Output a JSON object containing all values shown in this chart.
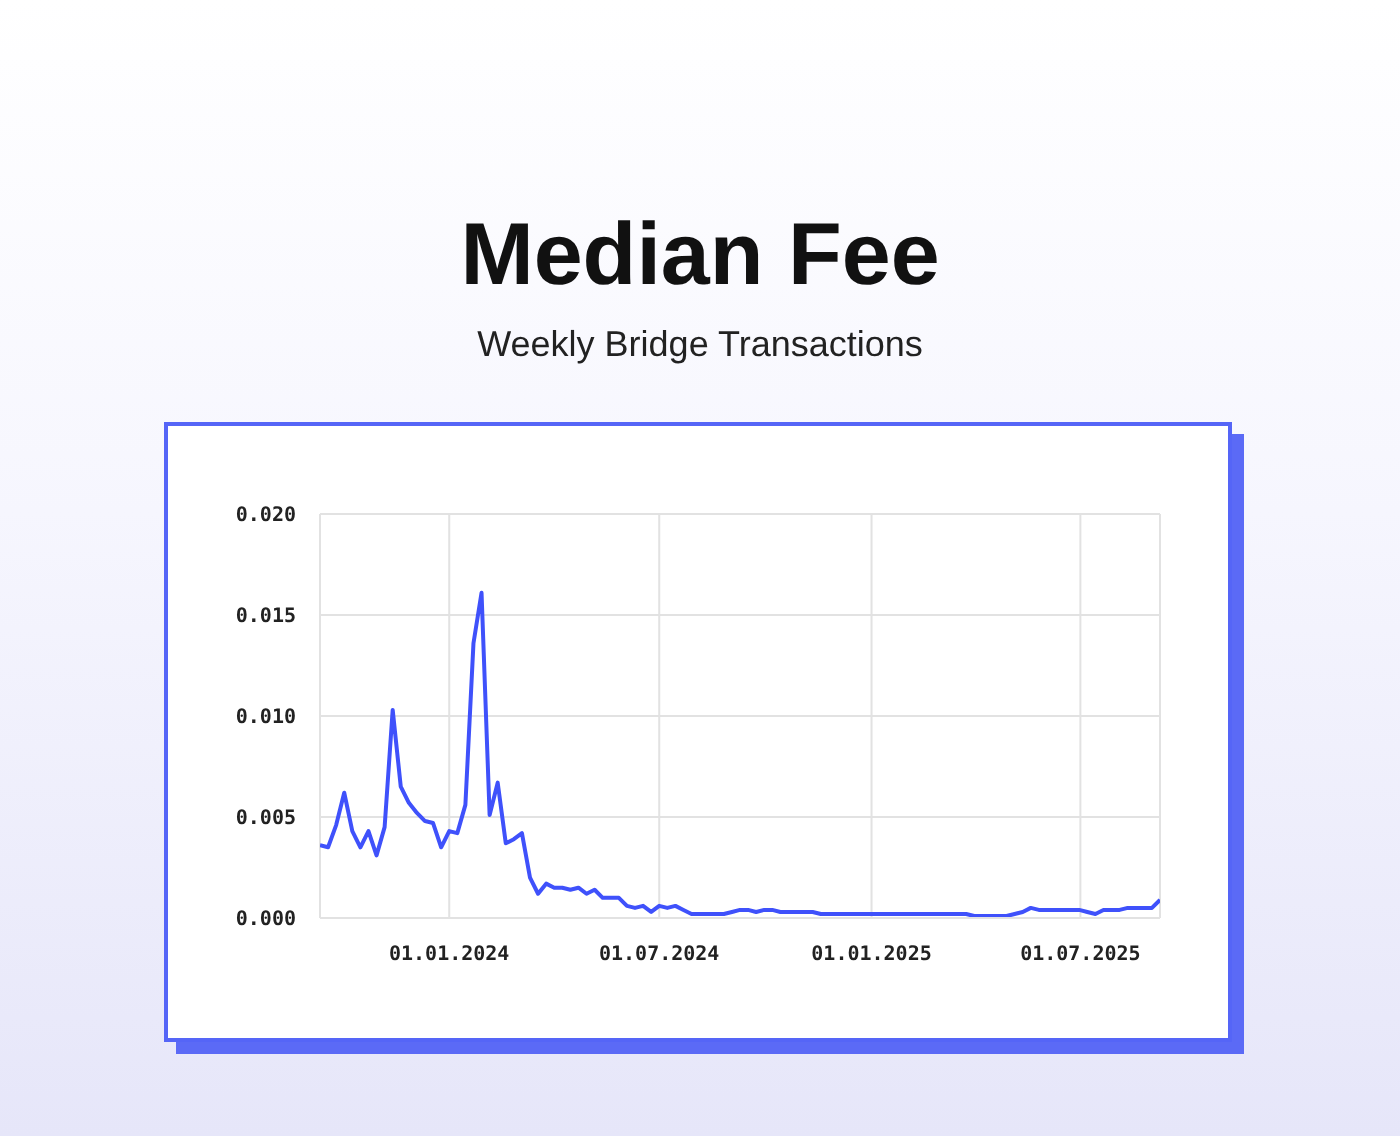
{
  "chart_data": {
    "type": "line",
    "title": "Median Fee",
    "subtitle": "Weekly Bridge Transactions",
    "x": [
      "2023-09-11",
      "2023-09-18",
      "2023-09-25",
      "2023-10-02",
      "2023-10-09",
      "2023-10-16",
      "2023-10-23",
      "2023-10-30",
      "2023-11-06",
      "2023-11-13",
      "2023-11-20",
      "2023-11-27",
      "2023-12-04",
      "2023-12-11",
      "2023-12-18",
      "2023-12-25",
      "2024-01-01",
      "2024-01-08",
      "2024-01-15",
      "2024-01-22",
      "2024-01-29",
      "2024-02-05",
      "2024-02-12",
      "2024-02-19",
      "2024-02-26",
      "2024-03-04",
      "2024-03-11",
      "2024-03-18",
      "2024-03-25",
      "2024-04-01",
      "2024-04-08",
      "2024-04-15",
      "2024-04-22",
      "2024-04-29",
      "2024-05-06",
      "2024-05-13",
      "2024-05-20",
      "2024-05-27",
      "2024-06-03",
      "2024-06-10",
      "2024-06-17",
      "2024-06-24",
      "2024-07-01",
      "2024-07-08",
      "2024-07-15",
      "2024-07-22",
      "2024-07-29",
      "2024-08-05",
      "2024-08-12",
      "2024-08-19",
      "2024-08-26",
      "2024-09-02",
      "2024-09-09",
      "2024-09-16",
      "2024-09-23",
      "2024-09-30",
      "2024-10-07",
      "2024-10-14",
      "2024-10-21",
      "2024-10-28",
      "2024-11-04",
      "2024-11-11",
      "2024-11-18",
      "2024-11-25",
      "2024-12-02",
      "2024-12-09",
      "2024-12-16",
      "2024-12-23",
      "2024-12-30",
      "2025-01-06",
      "2025-01-13",
      "2025-01-20",
      "2025-01-27",
      "2025-02-03",
      "2025-02-10",
      "2025-02-17",
      "2025-02-24",
      "2025-03-03",
      "2025-03-10",
      "2025-03-17",
      "2025-03-24",
      "2025-03-31",
      "2025-04-07",
      "2025-04-14",
      "2025-04-21",
      "2025-04-28",
      "2025-05-05",
      "2025-05-12",
      "2025-05-19",
      "2025-05-26",
      "2025-06-02",
      "2025-06-09",
      "2025-06-16",
      "2025-06-23",
      "2025-06-30",
      "2025-07-07",
      "2025-07-14",
      "2025-07-21",
      "2025-07-28",
      "2025-08-04",
      "2025-08-11",
      "2025-08-18",
      "2025-08-25",
      "2025-09-01",
      "2025-09-08"
    ],
    "values": [
      0.0036,
      0.0035,
      0.0046,
      0.0062,
      0.0043,
      0.0035,
      0.0043,
      0.0031,
      0.0045,
      0.0103,
      0.0065,
      0.0057,
      0.0052,
      0.0048,
      0.0047,
      0.0035,
      0.0043,
      0.0042,
      0.0056,
      0.0136,
      0.0161,
      0.0051,
      0.0067,
      0.0037,
      0.0039,
      0.0042,
      0.002,
      0.0012,
      0.0017,
      0.0015,
      0.0015,
      0.0014,
      0.0015,
      0.0012,
      0.0014,
      0.001,
      0.001,
      0.001,
      0.0006,
      0.0005,
      0.0006,
      0.0003,
      0.0006,
      0.0005,
      0.0006,
      0.0004,
      0.0002,
      0.0002,
      0.0002,
      0.0002,
      0.0002,
      0.0003,
      0.0004,
      0.0004,
      0.0003,
      0.0004,
      0.0004,
      0.0003,
      0.0003,
      0.0003,
      0.0003,
      0.0003,
      0.0002,
      0.0002,
      0.0002,
      0.0002,
      0.0002,
      0.0002,
      0.0002,
      0.0002,
      0.0002,
      0.0002,
      0.0002,
      0.0002,
      0.0002,
      0.0002,
      0.0002,
      0.0002,
      0.0002,
      0.0002,
      0.0002,
      0.0001,
      0.0001,
      0.0001,
      0.0001,
      0.0001,
      0.0002,
      0.0003,
      0.0005,
      0.0004,
      0.0004,
      0.0004,
      0.0004,
      0.0004,
      0.0004,
      0.0003,
      0.0002,
      0.0004,
      0.0004,
      0.0004,
      0.0005,
      0.0005,
      0.0005,
      0.0005,
      0.0009
    ],
    "color": "#3f51fb",
    "xlim": [
      "2023-09-11",
      "2025-09-08"
    ],
    "xticks": [
      {
        "value": "2024-01-01",
        "label": "01.01.2024"
      },
      {
        "value": "2024-07-01",
        "label": "01.07.2024"
      },
      {
        "value": "2025-01-01",
        "label": "01.01.2025"
      },
      {
        "value": "2025-07-01",
        "label": "01.07.2025"
      }
    ],
    "ylim": [
      0,
      0.02
    ],
    "yticks": [
      {
        "value": 0,
        "label": "0.000"
      },
      {
        "value": 0.005,
        "label": "0.005"
      },
      {
        "value": 0.01,
        "label": "0.010"
      },
      {
        "value": 0.015,
        "label": "0.015"
      },
      {
        "value": 0.02,
        "label": "0.020"
      }
    ],
    "grid": true
  }
}
